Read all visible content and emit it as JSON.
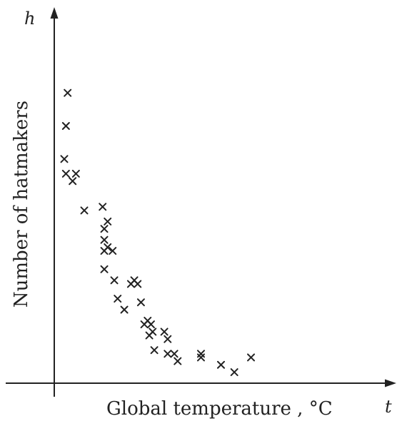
{
  "chart_data": {
    "type": "scatter",
    "title": "",
    "xlabel": "Global temperature , °C",
    "ylabel": "Number of hatmakers",
    "x_axis_symbol": "t",
    "y_axis_symbol": "h",
    "grid": false,
    "legend": "none",
    "marker": "x",
    "color": "#222222",
    "xlim": [
      0,
      100
    ],
    "ylim": [
      0,
      100
    ],
    "points": [
      {
        "x": 4,
        "y": 79
      },
      {
        "x": 3.5,
        "y": 70
      },
      {
        "x": 3,
        "y": 61
      },
      {
        "x": 3.5,
        "y": 57
      },
      {
        "x": 5.5,
        "y": 55
      },
      {
        "x": 6.5,
        "y": 57
      },
      {
        "x": 9,
        "y": 47
      },
      {
        "x": 14.5,
        "y": 48
      },
      {
        "x": 15,
        "y": 42
      },
      {
        "x": 16,
        "y": 44
      },
      {
        "x": 15,
        "y": 39
      },
      {
        "x": 15,
        "y": 36
      },
      {
        "x": 16,
        "y": 37
      },
      {
        "x": 17.5,
        "y": 36
      },
      {
        "x": 15,
        "y": 31
      },
      {
        "x": 18,
        "y": 28
      },
      {
        "x": 19,
        "y": 23
      },
      {
        "x": 21,
        "y": 20
      },
      {
        "x": 23,
        "y": 27
      },
      {
        "x": 24,
        "y": 28
      },
      {
        "x": 25,
        "y": 27
      },
      {
        "x": 26,
        "y": 22
      },
      {
        "x": 27,
        "y": 16
      },
      {
        "x": 28,
        "y": 17
      },
      {
        "x": 29,
        "y": 16
      },
      {
        "x": 29.5,
        "y": 14
      },
      {
        "x": 28.5,
        "y": 13
      },
      {
        "x": 30,
        "y": 9
      },
      {
        "x": 33,
        "y": 14
      },
      {
        "x": 34,
        "y": 12
      },
      {
        "x": 34,
        "y": 8
      },
      {
        "x": 36,
        "y": 8
      },
      {
        "x": 37,
        "y": 6
      },
      {
        "x": 44,
        "y": 8
      },
      {
        "x": 44,
        "y": 7
      },
      {
        "x": 50,
        "y": 5
      },
      {
        "x": 54,
        "y": 3
      },
      {
        "x": 59,
        "y": 7
      }
    ]
  }
}
